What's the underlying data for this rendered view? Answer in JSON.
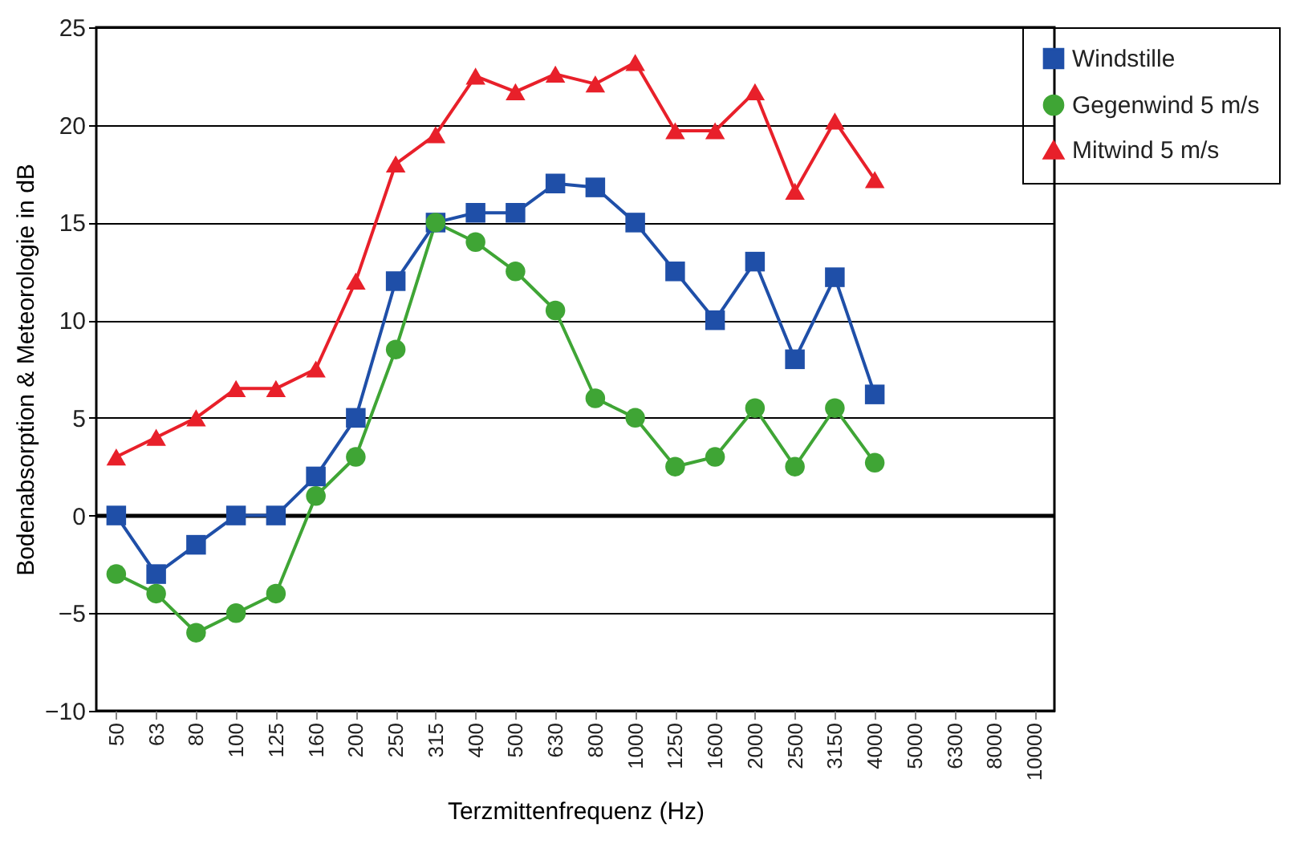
{
  "chart_data": {
    "type": "line",
    "xlabel": "Terzmittenfrequenz (Hz)",
    "ylabel": "Bodenabsorption  & Meteorologie in dB",
    "categories": [
      "50",
      "63",
      "80",
      "100",
      "125",
      "160",
      "200",
      "250",
      "315",
      "400",
      "500",
      "630",
      "800",
      "1000",
      "1250",
      "1600",
      "2000",
      "2500",
      "3150",
      "4000",
      "5000",
      "6300",
      "8000",
      "10000"
    ],
    "series": [
      {
        "name": "Windstille",
        "color": "#1f4fa8",
        "marker": "square",
        "values": [
          0,
          -3,
          -1.5,
          0,
          0,
          2,
          5,
          12,
          15,
          15.5,
          15.5,
          17,
          16.8,
          15,
          12.5,
          10,
          13,
          8,
          12.2,
          6.2,
          null,
          null,
          null,
          null
        ]
      },
      {
        "name": "Gegenwind 5 m/s",
        "color": "#3fa535",
        "marker": "circle",
        "values": [
          -3,
          -4,
          -6,
          -5,
          -4,
          1,
          3,
          8.5,
          15,
          14,
          12.5,
          10.5,
          6,
          5,
          2.5,
          3,
          5.5,
          2.5,
          5.5,
          2.7,
          null,
          null,
          null,
          null
        ]
      },
      {
        "name": "Mitwind 5 m/s",
        "color": "#e8202a",
        "marker": "triangle",
        "values": [
          3,
          4,
          5,
          6.5,
          6.5,
          7.5,
          12,
          18,
          19.5,
          22.5,
          21.7,
          22.6,
          22.1,
          23.2,
          19.7,
          19.7,
          21.7,
          16.6,
          20.2,
          17.2,
          null,
          null,
          null,
          null
        ]
      }
    ],
    "ylim": [
      -10,
      25
    ],
    "yticks": [
      -10,
      -5,
      0,
      5,
      10,
      15,
      20,
      25
    ],
    "grid": "y",
    "legend": "right"
  }
}
